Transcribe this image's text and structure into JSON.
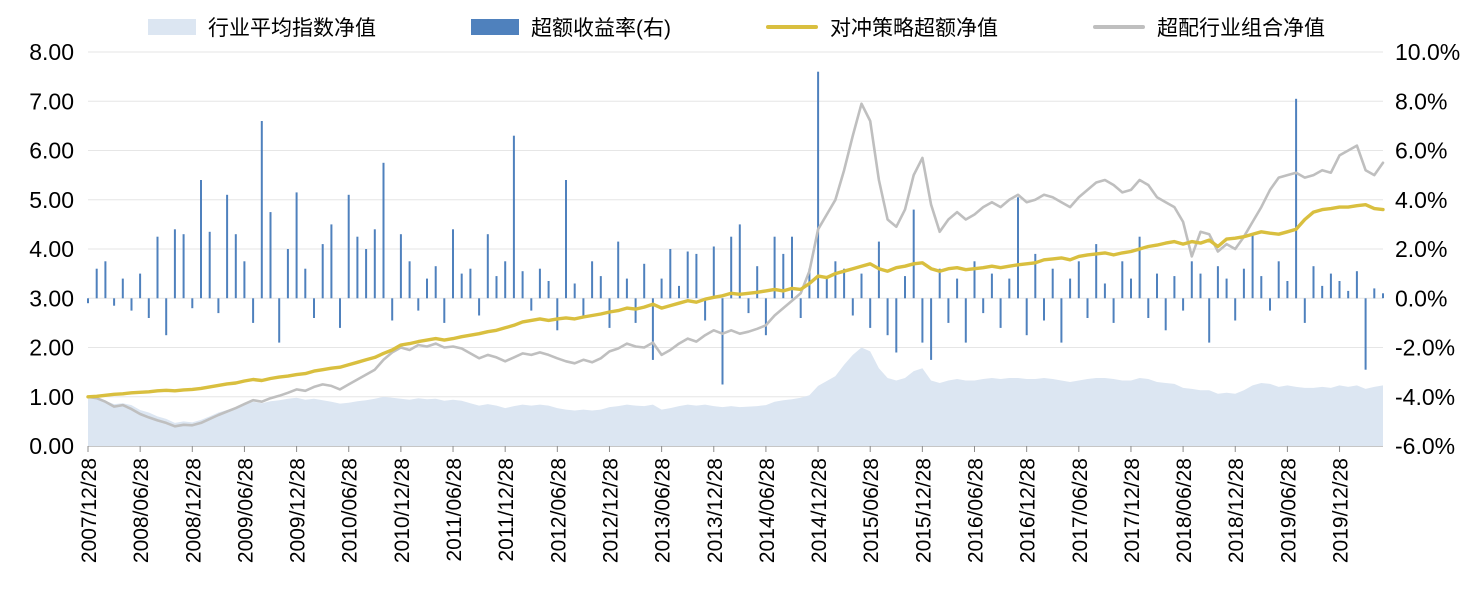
{
  "chart_data": {
    "type": "combo",
    "title": "",
    "legend_position": "top",
    "n_points": 150,
    "tick_every": 6,
    "x_tick_labels": [
      "2007/12/28",
      "2008/06/28",
      "2008/12/28",
      "2009/06/28",
      "2009/12/28",
      "2010/06/28",
      "2010/12/28",
      "2011/06/28",
      "2011/12/28",
      "2012/06/28",
      "2012/12/28",
      "2013/06/28",
      "2013/12/28",
      "2014/06/28",
      "2014/12/28",
      "2015/06/28",
      "2015/12/28",
      "2016/06/28",
      "2016/12/28",
      "2017/06/28",
      "2017/12/28",
      "2018/06/28",
      "2018/12/28",
      "2019/06/28",
      "2019/12/28"
    ],
    "left_axis": {
      "min": 0,
      "max": 8,
      "step": 1,
      "tick_labels": [
        "0.00",
        "1.00",
        "2.00",
        "3.00",
        "4.00",
        "5.00",
        "6.00",
        "7.00",
        "8.00"
      ]
    },
    "right_axis": {
      "min": -6,
      "max": 10,
      "step": 2,
      "tick_labels": [
        "-6.0%",
        "-4.0%",
        "-2.0%",
        "0.0%",
        "2.0%",
        "4.0%",
        "6.0%",
        "8.0%",
        "10.0%"
      ]
    },
    "series": [
      {
        "name": "行业平均指数净值",
        "type": "area",
        "axis": "left",
        "color": "#dce6f2",
        "values": [
          1.0,
          0.97,
          0.92,
          0.85,
          0.87,
          0.83,
          0.73,
          0.68,
          0.6,
          0.55,
          0.47,
          0.5,
          0.48,
          0.53,
          0.6,
          0.68,
          0.73,
          0.78,
          0.85,
          0.9,
          0.87,
          0.91,
          0.93,
          0.96,
          0.98,
          0.94,
          0.96,
          0.93,
          0.9,
          0.86,
          0.88,
          0.91,
          0.93,
          0.96,
          1.0,
          0.98,
          0.96,
          0.94,
          0.97,
          0.95,
          0.96,
          0.92,
          0.94,
          0.92,
          0.87,
          0.82,
          0.85,
          0.82,
          0.77,
          0.81,
          0.84,
          0.82,
          0.84,
          0.82,
          0.77,
          0.74,
          0.72,
          0.74,
          0.72,
          0.74,
          0.79,
          0.81,
          0.84,
          0.82,
          0.81,
          0.84,
          0.74,
          0.77,
          0.81,
          0.84,
          0.82,
          0.84,
          0.81,
          0.79,
          0.81,
          0.79,
          0.8,
          0.81,
          0.83,
          0.9,
          0.93,
          0.95,
          0.98,
          1.03,
          1.22,
          1.32,
          1.42,
          1.65,
          1.85,
          2.0,
          1.92,
          1.58,
          1.38,
          1.33,
          1.38,
          1.52,
          1.58,
          1.33,
          1.28,
          1.33,
          1.36,
          1.33,
          1.33,
          1.36,
          1.38,
          1.36,
          1.38,
          1.38,
          1.36,
          1.36,
          1.38,
          1.36,
          1.33,
          1.3,
          1.33,
          1.36,
          1.38,
          1.38,
          1.36,
          1.33,
          1.33,
          1.38,
          1.36,
          1.3,
          1.28,
          1.26,
          1.18,
          1.16,
          1.13,
          1.13,
          1.06,
          1.08,
          1.06,
          1.13,
          1.23,
          1.28,
          1.26,
          1.2,
          1.23,
          1.2,
          1.18,
          1.18,
          1.2,
          1.18,
          1.23,
          1.2,
          1.23,
          1.16,
          1.2,
          1.23
        ]
      },
      {
        "name": "超额收益率(右)",
        "type": "bar",
        "axis": "right",
        "color": "#4f81bd",
        "values": [
          -0.2,
          1.2,
          1.5,
          -0.3,
          0.8,
          -0.5,
          1.0,
          -0.8,
          2.5,
          -1.5,
          2.8,
          2.6,
          -0.4,
          4.8,
          2.7,
          -0.6,
          4.2,
          2.6,
          1.5,
          -1.0,
          7.2,
          3.5,
          -1.8,
          2.0,
          4.3,
          1.2,
          -0.8,
          2.2,
          3.0,
          -1.2,
          4.2,
          2.5,
          2.0,
          2.8,
          5.5,
          -0.9,
          2.6,
          1.5,
          -0.5,
          0.8,
          1.3,
          -1.0,
          2.8,
          1.0,
          1.2,
          -0.7,
          2.6,
          0.9,
          1.5,
          6.6,
          1.1,
          -0.5,
          1.2,
          0.7,
          -1.3,
          4.8,
          0.6,
          -0.8,
          1.5,
          0.9,
          -1.2,
          2.3,
          0.8,
          -1.0,
          1.4,
          -2.5,
          0.8,
          2.0,
          0.5,
          1.9,
          1.8,
          -0.9,
          2.1,
          -3.5,
          2.5,
          3.0,
          -0.6,
          1.3,
          -1.5,
          2.5,
          1.8,
          2.5,
          -0.8,
          1.2,
          9.2,
          0.8,
          1.5,
          1.2,
          -0.7,
          1.0,
          -1.2,
          2.3,
          -1.5,
          -2.2,
          0.9,
          3.6,
          -1.8,
          -2.5,
          1.2,
          -1.0,
          0.8,
          -1.8,
          1.5,
          -0.6,
          1.0,
          -1.2,
          0.8,
          4.1,
          -1.5,
          1.8,
          -0.9,
          1.2,
          -1.8,
          0.8,
          1.5,
          -0.8,
          2.2,
          0.6,
          -1.0,
          1.5,
          0.8,
          2.5,
          -0.8,
          1.0,
          -1.3,
          0.9,
          -0.5,
          1.5,
          1.0,
          -1.8,
          1.3,
          0.8,
          -0.9,
          1.2,
          2.6,
          0.9,
          -0.5,
          1.5,
          0.7,
          8.1,
          -1.0,
          1.3,
          0.5,
          1.0,
          0.7,
          0.3,
          1.1,
          -2.9,
          0.4,
          0.2
        ]
      },
      {
        "name": "对冲策略超额净值",
        "type": "line",
        "axis": "left",
        "color": "#d9bf3f",
        "values": [
          1.0,
          1.01,
          1.03,
          1.05,
          1.06,
          1.08,
          1.09,
          1.1,
          1.12,
          1.13,
          1.12,
          1.14,
          1.15,
          1.17,
          1.2,
          1.23,
          1.26,
          1.28,
          1.32,
          1.35,
          1.33,
          1.37,
          1.4,
          1.42,
          1.45,
          1.47,
          1.52,
          1.55,
          1.58,
          1.6,
          1.65,
          1.7,
          1.75,
          1.8,
          1.88,
          1.95,
          2.05,
          2.08,
          2.12,
          2.15,
          2.18,
          2.15,
          2.18,
          2.22,
          2.25,
          2.28,
          2.32,
          2.35,
          2.4,
          2.45,
          2.52,
          2.55,
          2.58,
          2.55,
          2.58,
          2.6,
          2.58,
          2.62,
          2.65,
          2.68,
          2.72,
          2.75,
          2.8,
          2.78,
          2.82,
          2.88,
          2.8,
          2.85,
          2.9,
          2.95,
          2.92,
          2.98,
          3.02,
          3.05,
          3.1,
          3.08,
          3.1,
          3.12,
          3.15,
          3.18,
          3.15,
          3.2,
          3.18,
          3.3,
          3.45,
          3.42,
          3.5,
          3.55,
          3.6,
          3.65,
          3.7,
          3.6,
          3.55,
          3.62,
          3.65,
          3.7,
          3.72,
          3.6,
          3.55,
          3.6,
          3.62,
          3.58,
          3.6,
          3.62,
          3.65,
          3.62,
          3.65,
          3.68,
          3.7,
          3.72,
          3.78,
          3.8,
          3.82,
          3.78,
          3.85,
          3.88,
          3.9,
          3.92,
          3.88,
          3.92,
          3.95,
          4.0,
          4.05,
          4.08,
          4.12,
          4.15,
          4.1,
          4.15,
          4.12,
          4.18,
          4.05,
          4.2,
          4.22,
          4.25,
          4.3,
          4.35,
          4.32,
          4.3,
          4.35,
          4.4,
          4.6,
          4.75,
          4.8,
          4.82,
          4.85,
          4.85,
          4.88,
          4.9,
          4.82,
          4.8
        ]
      },
      {
        "name": "超配行业组合净值",
        "type": "line",
        "axis": "left",
        "color": "#bfbfbf",
        "values": [
          1.0,
          0.97,
          0.9,
          0.8,
          0.83,
          0.75,
          0.65,
          0.58,
          0.52,
          0.47,
          0.4,
          0.43,
          0.42,
          0.47,
          0.55,
          0.63,
          0.7,
          0.77,
          0.85,
          0.93,
          0.9,
          0.97,
          1.02,
          1.08,
          1.15,
          1.12,
          1.2,
          1.25,
          1.22,
          1.15,
          1.25,
          1.35,
          1.45,
          1.55,
          1.75,
          1.9,
          2.0,
          1.95,
          2.05,
          2.02,
          2.08,
          2.0,
          2.02,
          1.98,
          1.88,
          1.78,
          1.85,
          1.8,
          1.72,
          1.8,
          1.88,
          1.85,
          1.9,
          1.85,
          1.78,
          1.72,
          1.68,
          1.75,
          1.7,
          1.78,
          1.92,
          1.98,
          2.08,
          2.02,
          2.0,
          2.1,
          1.85,
          1.95,
          2.08,
          2.18,
          2.12,
          2.25,
          2.35,
          2.28,
          2.35,
          2.28,
          2.32,
          2.38,
          2.45,
          2.65,
          2.8,
          2.95,
          3.1,
          3.55,
          4.4,
          4.7,
          5.0,
          5.6,
          6.3,
          6.95,
          6.6,
          5.4,
          4.6,
          4.45,
          4.8,
          5.5,
          5.85,
          4.9,
          4.35,
          4.6,
          4.75,
          4.6,
          4.7,
          4.85,
          4.95,
          4.85,
          5.0,
          5.1,
          4.95,
          5.0,
          5.1,
          5.05,
          4.95,
          4.85,
          5.05,
          5.2,
          5.35,
          5.4,
          5.3,
          5.15,
          5.2,
          5.4,
          5.3,
          5.05,
          4.95,
          4.85,
          4.55,
          3.85,
          4.35,
          4.3,
          3.95,
          4.1,
          4.0,
          4.25,
          4.55,
          4.85,
          5.2,
          5.45,
          5.5,
          5.55,
          5.45,
          5.5,
          5.6,
          5.55,
          5.9,
          6.0,
          6.1,
          5.6,
          5.5,
          5.75
        ]
      }
    ]
  }
}
